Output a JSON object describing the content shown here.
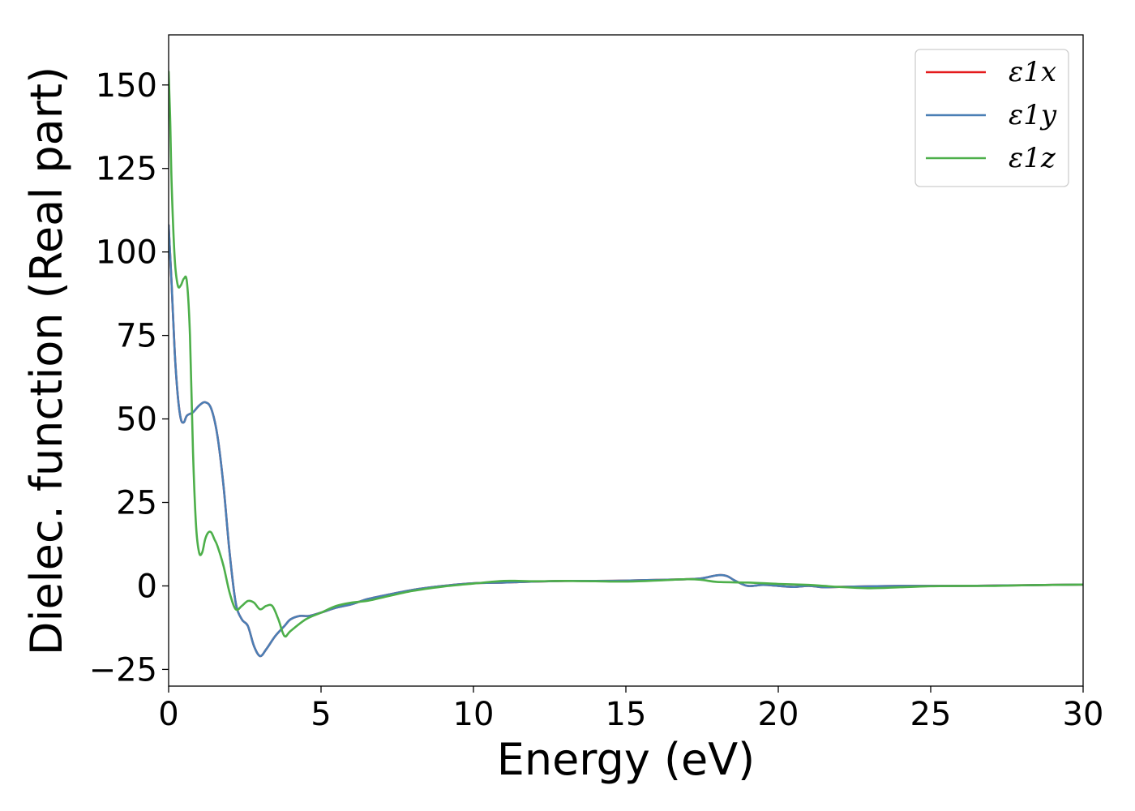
{
  "chart_data": {
    "type": "line",
    "xlabel": "Energy (eV)",
    "ylabel": "Dielec. function (Real part)",
    "xlim": [
      0,
      30
    ],
    "ylim": [
      -30,
      165
    ],
    "xticks": [
      0,
      5,
      10,
      15,
      20,
      25,
      30
    ],
    "xtick_labels": [
      "0",
      "5",
      "10",
      "15",
      "20",
      "25",
      "30"
    ],
    "yticks": [
      -25,
      0,
      25,
      50,
      75,
      100,
      125,
      150
    ],
    "ytick_labels": [
      "−25",
      "0",
      "25",
      "50",
      "75",
      "100",
      "125",
      "150"
    ],
    "grid": false,
    "legend_position": "top-right",
    "series": [
      {
        "name": "ε1x",
        "color": "#e41a1c",
        "x": [
          0,
          0.1,
          0.2,
          0.3,
          0.4,
          0.5,
          0.6,
          0.8,
          1.0,
          1.2,
          1.4,
          1.6,
          1.8,
          2.0,
          2.2,
          2.4,
          2.6,
          2.8,
          3.0,
          3.2,
          3.5,
          3.8,
          4.0,
          4.3,
          4.6,
          5.0,
          5.5,
          6.0,
          6.5,
          7.0,
          8.0,
          9.0,
          10.0,
          11.0,
          12.0,
          13.0,
          14.0,
          15.0,
          16.0,
          17.0,
          17.5,
          18.0,
          18.3,
          18.6,
          19.0,
          19.5,
          20.0,
          20.5,
          21.0,
          21.5,
          22.0,
          23.0,
          24.0,
          25.0,
          26.0,
          27.0,
          28.0,
          29.0,
          30.0
        ],
        "y": [
          108,
          90,
          70,
          57,
          50,
          49,
          51,
          52,
          54,
          55,
          53,
          45,
          30,
          10,
          -5,
          -10,
          -12,
          -18,
          -21,
          -19,
          -15,
          -12,
          -10,
          -9,
          -9,
          -8,
          -6.5,
          -5.5,
          -4,
          -3,
          -1.2,
          0,
          0.8,
          1.0,
          1.3,
          1.5,
          1.5,
          1.6,
          1.8,
          2.0,
          2.3,
          3.2,
          3.0,
          1.5,
          0,
          0.3,
          0,
          -0.3,
          0,
          -0.4,
          -0.3,
          -0.1,
          0,
          0,
          0,
          0.1,
          0.2,
          0.3,
          0.4
        ]
      },
      {
        "name": "ε1y",
        "color": "#4a7fb5",
        "x": [
          0,
          0.1,
          0.2,
          0.3,
          0.4,
          0.5,
          0.6,
          0.8,
          1.0,
          1.2,
          1.4,
          1.6,
          1.8,
          2.0,
          2.2,
          2.4,
          2.6,
          2.8,
          3.0,
          3.2,
          3.5,
          3.8,
          4.0,
          4.3,
          4.6,
          5.0,
          5.5,
          6.0,
          6.5,
          7.0,
          8.0,
          9.0,
          10.0,
          11.0,
          12.0,
          13.0,
          14.0,
          15.0,
          16.0,
          17.0,
          17.5,
          18.0,
          18.3,
          18.6,
          19.0,
          19.5,
          20.0,
          20.5,
          21.0,
          21.5,
          22.0,
          23.0,
          24.0,
          25.0,
          26.0,
          27.0,
          28.0,
          29.0,
          30.0
        ],
        "y": [
          108,
          90,
          70,
          57,
          50,
          49,
          51,
          52,
          54,
          55,
          53,
          45,
          30,
          10,
          -5,
          -10,
          -12,
          -18,
          -21,
          -19,
          -15,
          -12,
          -10,
          -9,
          -9,
          -8,
          -6.5,
          -5.5,
          -4,
          -3,
          -1.2,
          0,
          0.8,
          1.0,
          1.3,
          1.5,
          1.5,
          1.6,
          1.8,
          2.0,
          2.3,
          3.2,
          3.0,
          1.5,
          0,
          0.3,
          0,
          -0.3,
          0,
          -0.4,
          -0.3,
          -0.1,
          0,
          0,
          0,
          0.1,
          0.2,
          0.3,
          0.4
        ]
      },
      {
        "name": "ε1z",
        "color": "#4daf4a",
        "x": [
          0,
          0.05,
          0.1,
          0.2,
          0.3,
          0.4,
          0.5,
          0.6,
          0.7,
          0.8,
          0.9,
          1.0,
          1.1,
          1.2,
          1.3,
          1.4,
          1.5,
          1.6,
          1.8,
          2.0,
          2.2,
          2.4,
          2.6,
          2.8,
          3.0,
          3.2,
          3.4,
          3.6,
          3.8,
          4.0,
          4.5,
          5.0,
          5.5,
          6.0,
          6.5,
          7.0,
          8.0,
          9.0,
          10.0,
          11.0,
          12.0,
          13.0,
          14.0,
          15.0,
          16.0,
          17.0,
          17.5,
          18.0,
          19.0,
          20.0,
          21.0,
          21.5,
          22.0,
          23.0,
          24.0,
          25.0,
          26.0,
          27.0,
          28.0,
          29.0,
          30.0
        ],
        "y": [
          154,
          140,
          120,
          98,
          90,
          90,
          92,
          91,
          75,
          40,
          18,
          10,
          10,
          14,
          16,
          16,
          14,
          12,
          6,
          -2,
          -7,
          -6,
          -4.5,
          -5,
          -7,
          -6,
          -6,
          -10,
          -15,
          -13.5,
          -10,
          -8,
          -6,
          -5,
          -4.5,
          -3.5,
          -1.5,
          -0.2,
          0.7,
          1.5,
          1.4,
          1.5,
          1.4,
          1.3,
          1.6,
          2.0,
          1.8,
          1.2,
          1.0,
          0.6,
          0.3,
          0,
          -0.3,
          -0.7,
          -0.4,
          -0.1,
          0,
          0,
          0.2,
          0.3,
          0.4
        ]
      }
    ]
  }
}
